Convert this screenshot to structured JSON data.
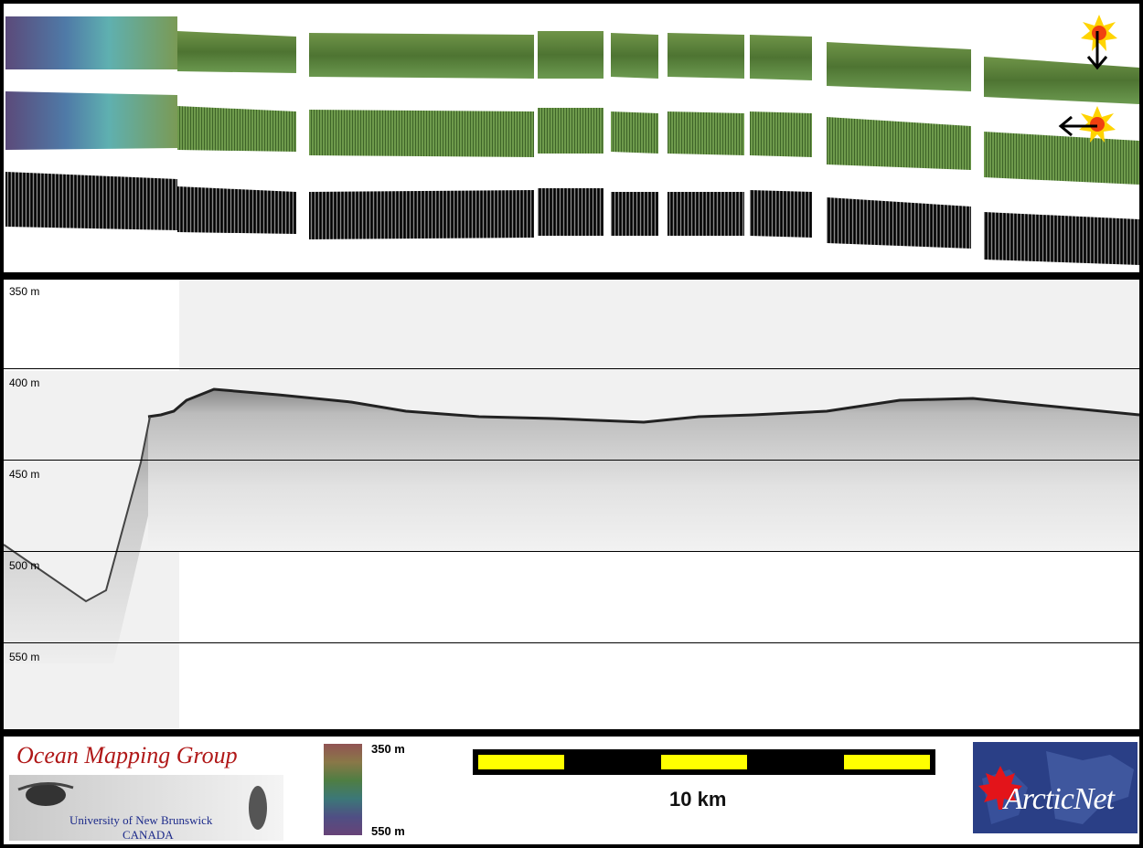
{
  "top_strip": {
    "direction_icons": [
      "sun-icon",
      "arrow-down-icon",
      "sun-icon",
      "arrow-left-icon"
    ]
  },
  "profile": {
    "depth_labels": [
      "350 m",
      "400 m",
      "450 m",
      "500 m",
      "550 m"
    ]
  },
  "footer": {
    "logo_title": "Ocean Mapping Group",
    "logo_university": "University of New Brunswick",
    "logo_country": "CANADA",
    "colorbar_top": "350 m",
    "colorbar_bottom": "550 m",
    "scale_label": "10 km",
    "partner_logo": "ArcticNet"
  },
  "colors": {
    "scale_yellow": "#ffff00",
    "scale_black": "#000000",
    "omg_red": "#b01818",
    "omg_blue": "#1c2a8a",
    "arcticnet_blue": "#2a3f86"
  }
}
